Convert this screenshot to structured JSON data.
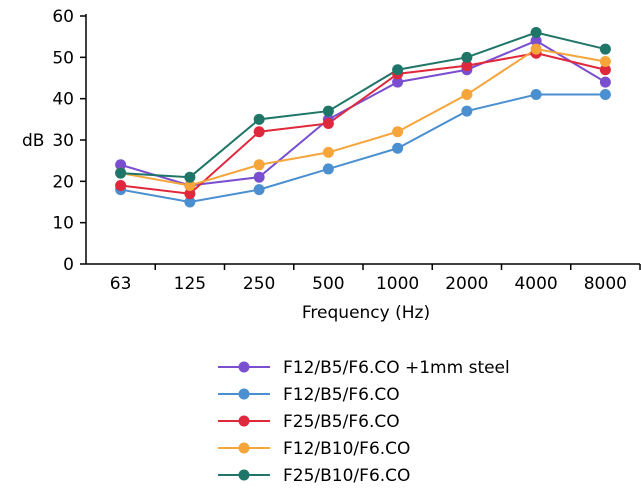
{
  "chart_data": {
    "type": "line",
    "xlabel": "Frequency (Hz)",
    "ylabel": "dB",
    "categories": [
      "63",
      "125",
      "250",
      "500",
      "1000",
      "2000",
      "4000",
      "8000"
    ],
    "yticks": [
      "0",
      "10",
      "20",
      "30",
      "40",
      "50",
      "60"
    ],
    "ylim": [
      0,
      60
    ],
    "grid": false,
    "legend_position": "bottom",
    "series": [
      {
        "name": "F12/B5/F6.CO +1mm steel",
        "color": "#7a4fcf",
        "values": [
          24,
          19,
          21,
          35,
          44,
          47,
          54,
          44
        ]
      },
      {
        "name": "F12/B5/F6.CO",
        "color": "#4a8fd0",
        "values": [
          18,
          15,
          18,
          23,
          28,
          37,
          41,
          41
        ]
      },
      {
        "name": "F25/B5/F6.CO",
        "color": "#e0283c",
        "values": [
          19,
          17,
          32,
          34,
          46,
          48,
          51,
          47
        ]
      },
      {
        "name": "F12/B10/F6.CO",
        "color": "#f5a53a",
        "values": [
          22,
          19,
          24,
          27,
          32,
          41,
          52,
          49
        ]
      },
      {
        "name": "F25/B10/F6.CO",
        "color": "#1e7568",
        "values": [
          22,
          21,
          35,
          37,
          47,
          50,
          56,
          52
        ]
      }
    ]
  }
}
